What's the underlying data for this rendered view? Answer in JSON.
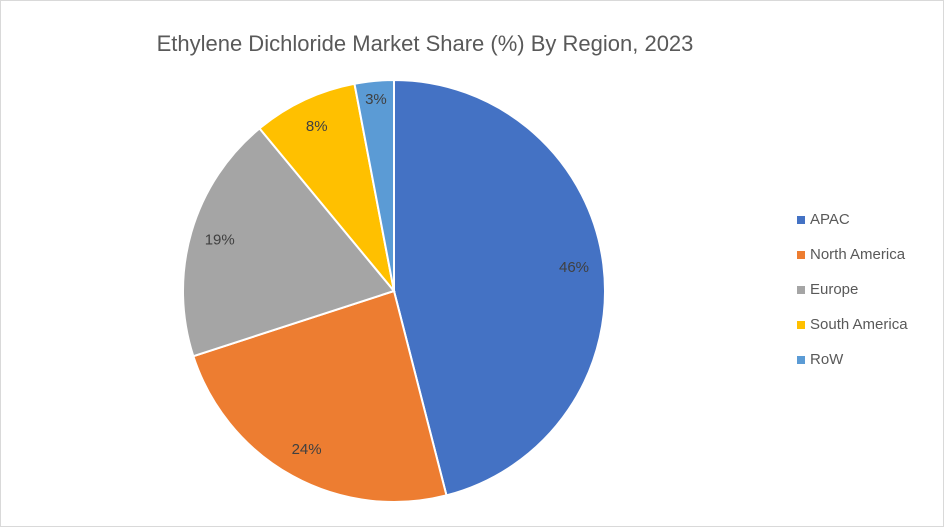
{
  "chart_data": {
    "type": "pie",
    "title": "Ethylene Dichloride Market Share (%) By Region, 2023",
    "categories": [
      "APAC",
      "North America",
      "Europe",
      "South America",
      "RoW"
    ],
    "values": [
      46,
      24,
      19,
      8,
      3
    ],
    "value_labels": [
      "46%",
      "24%",
      "19%",
      "8%",
      "3%"
    ],
    "colors": [
      "#4472c4",
      "#ed7d31",
      "#a5a5a5",
      "#ffc000",
      "#5b9bd5"
    ],
    "legend": "right"
  }
}
